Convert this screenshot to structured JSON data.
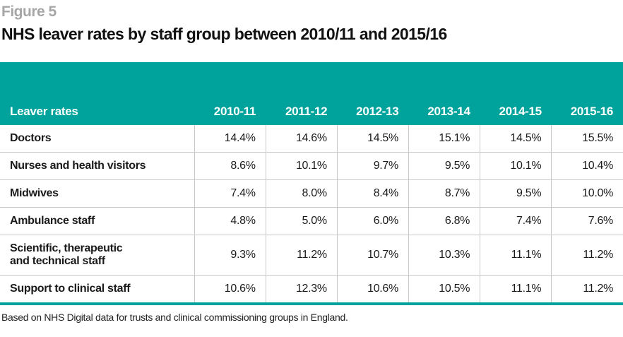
{
  "figure_label": "Figure 5",
  "title": "NHS leaver rates by staff group between 2010/11 and 2015/16",
  "footnote": "Based on NHS Digital data for trusts and clinical commissioning groups in England.",
  "colors": {
    "header": "#00a39b",
    "grid": "#c8c8c8"
  },
  "chart_data": {
    "type": "table",
    "title": "NHS leaver rates by staff group between 2010/11 and 2015/16",
    "header": [
      "Leaver rates",
      "2010-11",
      "2011-12",
      "2012-13",
      "2013-14",
      "2014-15",
      "2015-16"
    ],
    "rows": [
      {
        "label": "Doctors",
        "values": [
          "14.4%",
          "14.6%",
          "14.5%",
          "15.1%",
          "14.5%",
          "15.5%"
        ]
      },
      {
        "label": "Nurses and health visitors",
        "values": [
          "8.6%",
          "10.1%",
          "9.7%",
          "9.5%",
          "10.1%",
          "10.4%"
        ]
      },
      {
        "label": "Midwives",
        "values": [
          "7.4%",
          "8.0%",
          "8.4%",
          "8.7%",
          "9.5%",
          "10.0%"
        ]
      },
      {
        "label": "Ambulance staff",
        "values": [
          "4.8%",
          "5.0%",
          "6.0%",
          "6.8%",
          "7.4%",
          "7.6%"
        ]
      },
      {
        "label": "Scientific, therapeutic and technical staff",
        "values": [
          "9.3%",
          "11.2%",
          "10.7%",
          "10.3%",
          "11.1%",
          "11.2%"
        ]
      },
      {
        "label": "Support to clinical staff",
        "values": [
          "10.6%",
          "12.3%",
          "10.6%",
          "10.5%",
          "11.1%",
          "11.2%"
        ]
      }
    ]
  }
}
